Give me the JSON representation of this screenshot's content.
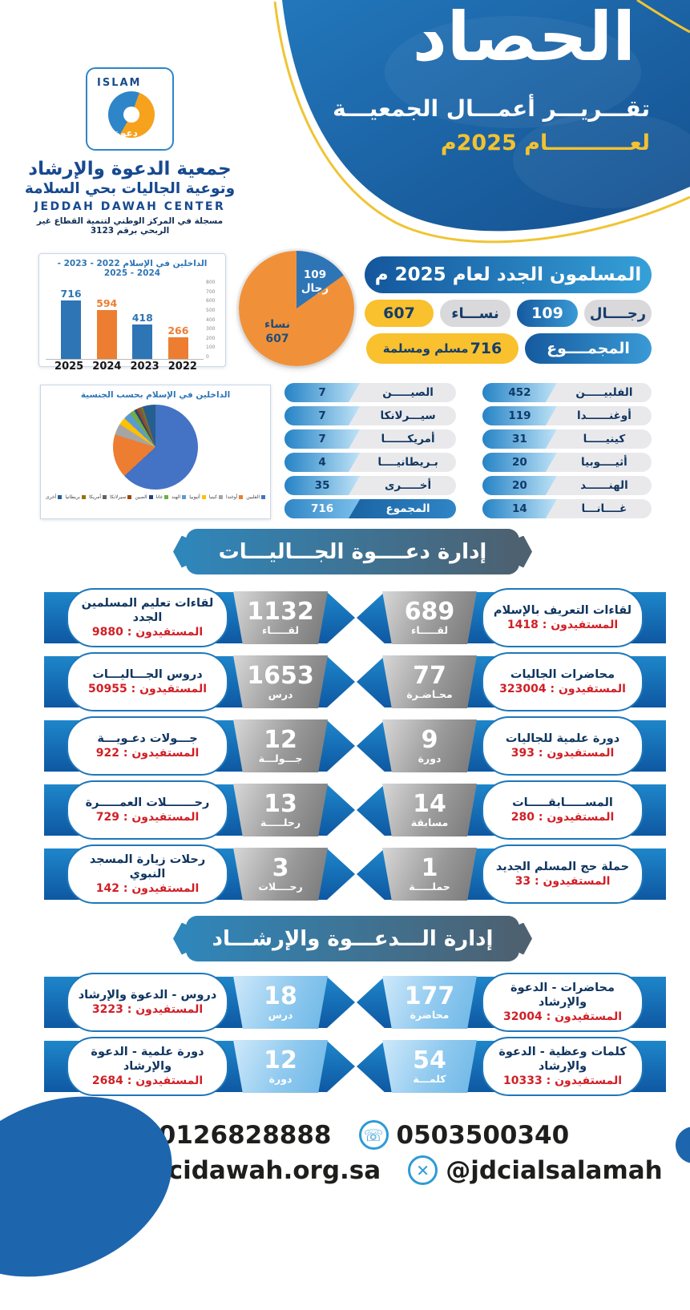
{
  "header": {
    "title": "الحصاد",
    "subtitle": "تقـــريـــر أعمـــال الجمعيـــة",
    "year_line": "لعـــــــــــام 2025م"
  },
  "brand": {
    "logo_islam": "ISLAM",
    "logo_dawah": "دعوة",
    "org_name": "جمعية الدعوة والإرشاد",
    "org_name2": "وتوعية الجاليات بحي السلامة",
    "org_en": "JEDDAH DAWAH CENTER",
    "registration": "مسجلة في المركز الوطني لتنمية القطاع غير الربحي برقم 3123"
  },
  "chart_data": [
    {
      "type": "bar",
      "title": "الداخلين في الإسلام 2022 - 2023 - 2024 - 2025",
      "categories": [
        "2025",
        "2024",
        "2023",
        "2022"
      ],
      "values": [
        716,
        594,
        418,
        266
      ],
      "bar_colors": [
        "#2e75b6",
        "#ed7d31",
        "#2e75b6",
        "#ed7d31"
      ],
      "ylim": [
        0,
        800
      ],
      "yticks": [
        800,
        700,
        600,
        500,
        400,
        300,
        200,
        100,
        0
      ],
      "axis_side": "right",
      "grid": false
    },
    {
      "type": "pie",
      "name": "new-muslims-by-gender",
      "slices": [
        {
          "label": "رجال",
          "value": 109,
          "color": "#2e75b6"
        },
        {
          "label": "نساء",
          "value": 607,
          "color": "#f0913a"
        }
      ]
    },
    {
      "type": "pie",
      "name": "new-muslims-by-nationality",
      "title": "الداخلين في الإسلام بحسب الجنسية",
      "legend_position": "bottom",
      "slices": [
        {
          "label": "الفلبين",
          "value": 452,
          "color": "#4472c4"
        },
        {
          "label": "أوغندا",
          "value": 119,
          "color": "#ed7d31"
        },
        {
          "label": "كينيا",
          "value": 31,
          "color": "#a5a5a5"
        },
        {
          "label": "أثيوبيا",
          "value": 20,
          "color": "#ffc000"
        },
        {
          "label": "الهند",
          "value": 20,
          "color": "#5b9bd5"
        },
        {
          "label": "غانا",
          "value": 14,
          "color": "#70ad47"
        },
        {
          "label": "الصين",
          "value": 7,
          "color": "#264478"
        },
        {
          "label": "سيرلانكا",
          "value": 7,
          "color": "#9e480e"
        },
        {
          "label": "أمريكا",
          "value": 7,
          "color": "#636363"
        },
        {
          "label": "بريطانيا",
          "value": 4,
          "color": "#997300"
        },
        {
          "label": "أخرى",
          "value": 35,
          "color": "#255e91"
        }
      ]
    }
  ],
  "new_muslims": {
    "header": "المسلمون الجدد لعام 2025 م",
    "men_label": "رجــــال",
    "men_value": "109",
    "women_label": "نســـاء",
    "women_value": "607",
    "total_label": "المجمــــوع",
    "total_value": "716",
    "total_suffix": "مسلم ومسلمة"
  },
  "nationalities": {
    "right_column": [
      {
        "label": "الفلبيـــــن",
        "value": "452"
      },
      {
        "label": "أوغنــــــدا",
        "value": "119"
      },
      {
        "label": "كينيـــــا",
        "value": "31"
      },
      {
        "label": "أثيــــوبيا",
        "value": "20"
      },
      {
        "label": "الهنــــــد",
        "value": "20"
      },
      {
        "label": "غــــانـــا",
        "value": "14"
      }
    ],
    "middle_column": [
      {
        "label": "الصيـــــن",
        "value": "7"
      },
      {
        "label": "سيـــرلانكا",
        "value": "7"
      },
      {
        "label": "أمريكــــــا",
        "value": "7"
      },
      {
        "label": "بـريطانيــــا",
        "value": "4"
      },
      {
        "label": "أخـــــرى",
        "value": "35"
      },
      {
        "label": "المجموع",
        "value": "716"
      }
    ]
  },
  "sections": [
    {
      "title": "إدارة دعــــوة الجـــاليـــات",
      "rows": [
        {
          "right": {
            "title": "لقاءات التعريف بالإسلام",
            "number": "689",
            "unit": "لقـــــاء",
            "ben_label": "المستفيدون :",
            "ben_value": "1418"
          },
          "left": {
            "title": "لقاءات تعليم المسلمين الجدد",
            "number": "1132",
            "unit": "لقـــــاء",
            "ben_label": "المستفيدون :",
            "ben_value": "9880"
          }
        },
        {
          "right": {
            "title": "محاضرات الجاليات",
            "number": "77",
            "unit": "محـاضـرة",
            "ben_label": "المستفيدون :",
            "ben_value": "323004"
          },
          "left": {
            "title": "دروس الجـــاليـــات",
            "number": "1653",
            "unit": "درس",
            "ben_label": "المستفيدون :",
            "ben_value": "50955"
          }
        },
        {
          "right": {
            "title": "دورة علمية للجاليات",
            "number": "9",
            "unit": "دورة",
            "ben_label": "المستفيدون :",
            "ben_value": "393"
          },
          "left": {
            "title": "جـــولات دعـويـــة",
            "number": "12",
            "unit": "جـــولـــة",
            "ben_label": "المستفيدون :",
            "ben_value": "922"
          }
        },
        {
          "right": {
            "title": "المســـــابقـــــات",
            "number": "14",
            "unit": "مسابقة",
            "ben_label": "المستفيدون :",
            "ben_value": "280"
          },
          "left": {
            "title": "رحـــــــلات العمـــــرة",
            "number": "13",
            "unit": "رحلـــــة",
            "ben_label": "المستفيدون :",
            "ben_value": "729"
          }
        },
        {
          "right": {
            "title": "حملة حج المسلم الجديد",
            "number": "1",
            "unit": "حملـــــة",
            "ben_label": "المستفيدون :",
            "ben_value": "33"
          },
          "left": {
            "title": "رحلات زيارة المسجد النبوي",
            "number": "3",
            "unit": "رحــــلات",
            "ben_label": "المستفيدون :",
            "ben_value": "142"
          }
        }
      ]
    },
    {
      "title": "إدارة الـــدعـــوة والإرشـــاد",
      "rows": [
        {
          "right": {
            "title": "محاضرات - الدعوة والإرشاد",
            "number": "177",
            "unit": "محاضرة",
            "ben_label": "المستفيدون :",
            "ben_value": "32004"
          },
          "left": {
            "title": "دروس - الدعوة والإرشاد",
            "number": "18",
            "unit": "درس",
            "ben_label": "المستفيدون :",
            "ben_value": "3223"
          }
        },
        {
          "right": {
            "title": "كلمات وعظية - الدعوة والإرشاد",
            "number": "54",
            "unit": "كلمـــة",
            "ben_label": "المستفيدون :",
            "ben_value": "10333"
          },
          "left": {
            "title": "دورة علمية - الدعوة والإرشاد",
            "number": "12",
            "unit": "دورة",
            "ben_label": "المستفيدون :",
            "ben_value": "2684"
          }
        }
      ]
    }
  ],
  "footer": {
    "phone": "0126828888",
    "whatsapp": "0503500340",
    "website": "www.jdcidawah.org.sa",
    "x_handle": "@jdcialsalamah"
  }
}
